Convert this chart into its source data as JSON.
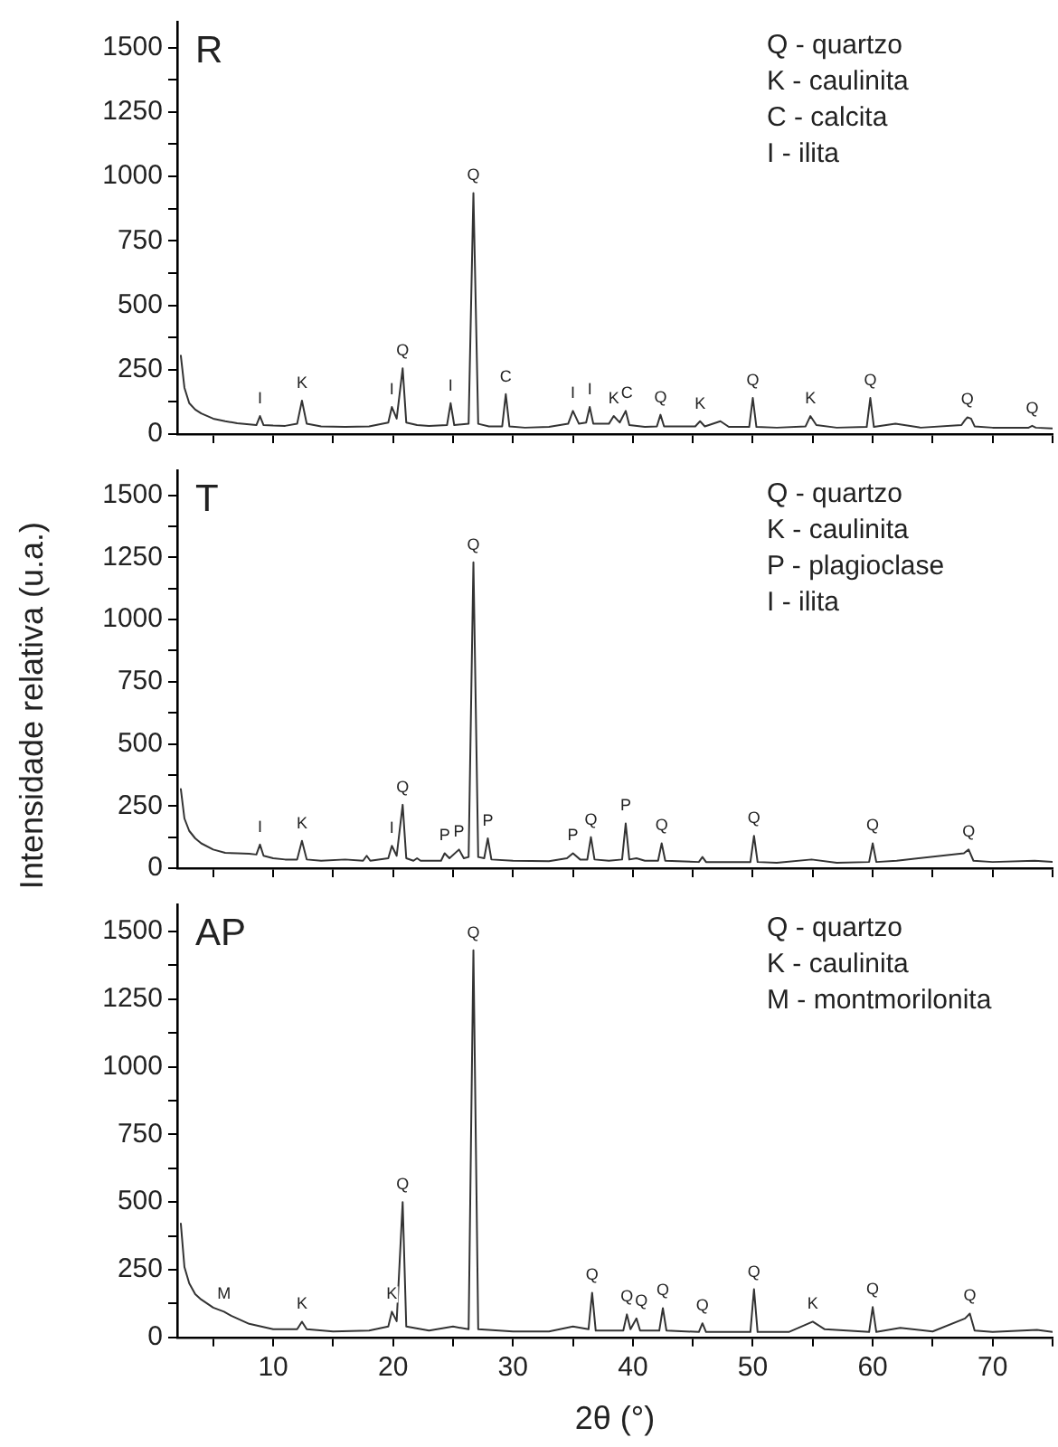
{
  "chart_data": [
    {
      "type": "line",
      "title": "R",
      "xlim": [
        2,
        75
      ],
      "ylim": [
        0,
        1600
      ],
      "tick_labels": "y",
      "marker": "none",
      "line_style": "solid",
      "xticks": [
        {
          "value": 5,
          "label": null
        },
        10,
        {
          "value": 15,
          "label": null
        },
        20,
        {
          "value": 25,
          "label": null
        },
        30,
        {
          "value": 35,
          "label": null
        },
        40,
        {
          "value": 45,
          "label": null
        },
        50,
        {
          "value": 55,
          "label": null
        },
        60,
        {
          "value": 65,
          "label": null
        },
        70,
        {
          "value": 75,
          "label": null
        }
      ],
      "yticks": [
        0,
        {
          "value": 125,
          "label": null
        },
        250,
        {
          "value": 375,
          "label": null
        },
        500,
        {
          "value": 625,
          "label": null
        },
        750,
        {
          "value": 875,
          "label": null
        },
        1000,
        {
          "value": 1125,
          "label": null
        },
        1250,
        {
          "value": 1375,
          "label": null
        },
        1500
      ],
      "series": [
        {
          "color": "#333333",
          "x": [
            2.3,
            2.6,
            3,
            3.5,
            4,
            5,
            6,
            7,
            8,
            8.6,
            8.9,
            9.2,
            10,
            11,
            12.0,
            12.4,
            12.8,
            14,
            16,
            18,
            19.6,
            19.9,
            20.3,
            20.8,
            21.1,
            22,
            23,
            24.5,
            24.8,
            25.1,
            26.3,
            26.7,
            27.1,
            28,
            29.1,
            29.4,
            29.7,
            31,
            33,
            34.6,
            35.0,
            35.5,
            36.1,
            36.4,
            36.7,
            38.0,
            38.4,
            38.9,
            39.4,
            39.7,
            41,
            42.0,
            42.3,
            42.6,
            45.2,
            45.6,
            46,
            47.3,
            48,
            49.7,
            50.0,
            50.3,
            52,
            54.4,
            54.8,
            55.3,
            57,
            59.5,
            59.8,
            60.1,
            61.9,
            64,
            67.4,
            67.7,
            67.9,
            68.2,
            68.5,
            70,
            73.0,
            73.3,
            73.6,
            75
          ],
          "values": [
            304,
            180,
            120,
            95,
            80,
            60,
            50,
            42,
            38,
            35,
            70,
            35,
            33,
            32,
            40,
            130,
            40,
            30,
            28,
            30,
            45,
            105,
            60,
            255,
            45,
            35,
            32,
            35,
            120,
            35,
            40,
            935,
            40,
            30,
            30,
            155,
            30,
            25,
            28,
            40,
            90,
            40,
            45,
            105,
            40,
            40,
            70,
            45,
            90,
            35,
            28,
            30,
            75,
            30,
            30,
            50,
            30,
            50,
            28,
            28,
            140,
            28,
            25,
            30,
            70,
            35,
            25,
            28,
            140,
            28,
            40,
            25,
            35,
            55,
            65,
            60,
            30,
            25,
            25,
            32,
            25,
            22
          ]
        }
      ],
      "annotations": [
        "Q - quartzo",
        "K - caulinita",
        "C - calcita",
        "I - ilita",
        {
          "text": "I",
          "x": 8.9,
          "y": 70
        },
        {
          "text": "K",
          "x": 12.4,
          "y": 130
        },
        {
          "text": "I",
          "x": 19.9,
          "y": 105
        },
        {
          "text": "Q",
          "x": 20.8,
          "y": 255
        },
        {
          "text": "I",
          "x": 24.8,
          "y": 120
        },
        {
          "text": "Q",
          "x": 26.7,
          "y": 935
        },
        {
          "text": "C",
          "x": 29.4,
          "y": 155
        },
        {
          "text": "I",
          "x": 35.0,
          "y": 90
        },
        {
          "text": "I",
          "x": 36.4,
          "y": 105
        },
        {
          "text": "K",
          "x": 38.4,
          "y": 70
        },
        {
          "text": "C",
          "x": 39.4,
          "y": 90
        },
        {
          "text": "Q",
          "x": 42.3,
          "y": 75
        },
        {
          "text": "K",
          "x": 45.6,
          "y": 50
        },
        {
          "text": "Q",
          "x": 50.0,
          "y": 140
        },
        {
          "text": "K",
          "x": 54.8,
          "y": 70
        },
        {
          "text": "Q",
          "x": 59.8,
          "y": 140
        },
        {
          "text": "Q",
          "x": 67.9,
          "y": 65
        },
        {
          "text": "Q",
          "x": 73.3,
          "y": 32
        }
      ]
    },
    {
      "type": "line",
      "title": "T",
      "ylabel": "Intensidade relativa (u.a.)",
      "xlim": [
        2,
        75
      ],
      "ylim": [
        0,
        1600
      ],
      "tick_labels": "y",
      "marker": "none",
      "line_style": "solid",
      "xticks": [
        {
          "value": 5,
          "label": null
        },
        10,
        {
          "value": 15,
          "label": null
        },
        20,
        {
          "value": 25,
          "label": null
        },
        30,
        {
          "value": 35,
          "label": null
        },
        40,
        {
          "value": 45,
          "label": null
        },
        50,
        {
          "value": 55,
          "label": null
        },
        60,
        {
          "value": 65,
          "label": null
        },
        70,
        {
          "value": 75,
          "label": null
        }
      ],
      "yticks": [
        0,
        {
          "value": 125,
          "label": null
        },
        250,
        {
          "value": 375,
          "label": null
        },
        500,
        {
          "value": 625,
          "label": null
        },
        750,
        {
          "value": 875,
          "label": null
        },
        1000,
        {
          "value": 1125,
          "label": null
        },
        1250,
        {
          "value": 1375,
          "label": null
        },
        1500
      ],
      "series": [
        {
          "color": "#333333",
          "x": [
            2.3,
            2.6,
            3,
            3.5,
            4,
            5,
            6,
            7,
            8,
            8.6,
            8.9,
            9.2,
            10,
            11,
            12.0,
            12.4,
            12.8,
            14,
            16,
            17.5,
            17.8,
            18.1,
            19.6,
            19.9,
            20.3,
            20.8,
            21.1,
            21.7,
            22.0,
            22.3,
            24.0,
            24.3,
            24.7,
            25.5,
            25.9,
            26.3,
            26.7,
            27.1,
            27.6,
            27.9,
            28.2,
            30,
            33,
            34.5,
            35.0,
            35.6,
            36.2,
            36.5,
            36.8,
            38,
            39.1,
            39.4,
            39.7,
            40.3,
            41,
            42.1,
            42.4,
            42.7,
            45.5,
            45.8,
            46.1,
            48,
            49.8,
            50.1,
            50.4,
            52,
            54.9,
            57,
            59.7,
            60.0,
            60.3,
            62,
            67.6,
            68.0,
            68.4,
            70,
            73.5,
            75
          ],
          "values": [
            318,
            200,
            150,
            120,
            100,
            75,
            62,
            60,
            58,
            55,
            95,
            50,
            40,
            35,
            35,
            110,
            35,
            30,
            35,
            30,
            50,
            30,
            40,
            90,
            50,
            255,
            40,
            30,
            40,
            30,
            30,
            60,
            40,
            75,
            40,
            45,
            1230,
            45,
            40,
            120,
            35,
            30,
            28,
            40,
            60,
            35,
            35,
            125,
            35,
            30,
            35,
            180,
            35,
            40,
            30,
            30,
            100,
            30,
            25,
            45,
            25,
            25,
            25,
            130,
            25,
            22,
            35,
            22,
            25,
            100,
            25,
            30,
            60,
            75,
            30,
            25,
            30,
            25
          ]
        }
      ],
      "annotations": [
        "Q - quartzo",
        "K - caulinita",
        "P - plagioclase",
        "I - ilita",
        {
          "text": "I",
          "x": 8.9,
          "y": 95
        },
        {
          "text": "K",
          "x": 12.4,
          "y": 110
        },
        {
          "text": "I",
          "x": 19.9,
          "y": 90
        },
        {
          "text": "Q",
          "x": 20.8,
          "y": 255
        },
        {
          "text": "P",
          "x": 24.3,
          "y": 60
        },
        {
          "text": "P",
          "x": 25.5,
          "y": 75
        },
        {
          "text": "Q",
          "x": 26.7,
          "y": 1230
        },
        {
          "text": "P",
          "x": 27.9,
          "y": 120
        },
        {
          "text": "P",
          "x": 35.0,
          "y": 60
        },
        {
          "text": "Q",
          "x": 36.5,
          "y": 125
        },
        {
          "text": "P",
          "x": 39.4,
          "y": 180
        },
        {
          "text": "Q",
          "x": 42.4,
          "y": 100
        },
        {
          "text": "Q",
          "x": 50.1,
          "y": 130
        },
        {
          "text": "Q",
          "x": 60.0,
          "y": 100
        },
        {
          "text": "Q",
          "x": 68.0,
          "y": 75
        }
      ]
    },
    {
      "type": "line",
      "title": "AP",
      "xlabel": "2θ (°)",
      "xlim": [
        2,
        75
      ],
      "ylim": [
        0,
        1600
      ],
      "marker": "none",
      "line_style": "solid",
      "xticks": [
        {
          "value": 5,
          "label": null
        },
        10,
        {
          "value": 15,
          "label": null
        },
        20,
        {
          "value": 25,
          "label": null
        },
        30,
        {
          "value": 35,
          "label": null
        },
        40,
        {
          "value": 45,
          "label": null
        },
        50,
        {
          "value": 55,
          "label": null
        },
        60,
        {
          "value": 65,
          "label": null
        },
        70,
        {
          "value": 75,
          "label": null
        }
      ],
      "yticks": [
        0,
        {
          "value": 125,
          "label": null
        },
        250,
        {
          "value": 375,
          "label": null
        },
        500,
        {
          "value": 625,
          "label": null
        },
        750,
        {
          "value": 875,
          "label": null
        },
        1000,
        {
          "value": 1125,
          "label": null
        },
        1250,
        {
          "value": 1375,
          "label": null
        },
        1500
      ],
      "series": [
        {
          "color": "#333333",
          "x": [
            2.3,
            2.6,
            3,
            3.5,
            4,
            5,
            5.9,
            6.5,
            8,
            10,
            12.0,
            12.4,
            12.8,
            15,
            18,
            19.6,
            19.9,
            20.3,
            20.8,
            21.1,
            23,
            25.0,
            26.3,
            26.7,
            27.1,
            30,
            33,
            35.0,
            36.3,
            36.6,
            36.9,
            39.2,
            39.5,
            39.8,
            40.3,
            40.6,
            42.2,
            42.5,
            42.8,
            45.5,
            45.8,
            46.1,
            48,
            49.8,
            50.1,
            50.4,
            53,
            55.0,
            56,
            59.7,
            60.0,
            60.3,
            62.3,
            65,
            67.7,
            68.1,
            68.5,
            70,
            73.7,
            75
          ],
          "values": [
            420,
            260,
            200,
            160,
            140,
            110,
            95,
            80,
            50,
            30,
            30,
            58,
            30,
            22,
            25,
            40,
            95,
            60,
            500,
            40,
            25,
            40,
            30,
            1430,
            30,
            22,
            22,
            40,
            30,
            165,
            25,
            25,
            85,
            30,
            70,
            25,
            25,
            108,
            25,
            20,
            52,
            20,
            20,
            20,
            178,
            20,
            20,
            58,
            30,
            20,
            112,
            20,
            35,
            22,
            70,
            88,
            25,
            20,
            28,
            20
          ]
        }
      ],
      "annotations": [
        "Q - quartzo",
        "K - caulinita",
        "M - montmorilonita",
        {
          "text": "M",
          "x": 5.9,
          "y": 95
        },
        {
          "text": "K",
          "x": 12.4,
          "y": 58
        },
        {
          "text": "K",
          "x": 19.9,
          "y": 95
        },
        {
          "text": "Q",
          "x": 20.8,
          "y": 500
        },
        {
          "text": "Q",
          "x": 26.7,
          "y": 1430
        },
        {
          "text": "Q",
          "x": 36.6,
          "y": 165
        },
        {
          "text": "Q",
          "x": 39.5,
          "y": 85
        },
        {
          "text": "Q",
          "x": 40.3,
          "y": 70
        },
        {
          "text": "Q",
          "x": 42.5,
          "y": 108
        },
        {
          "text": "Q",
          "x": 45.8,
          "y": 52
        },
        {
          "text": "Q",
          "x": 50.1,
          "y": 178
        },
        {
          "text": "K",
          "x": 55.0,
          "y": 58
        },
        {
          "text": "Q",
          "x": 60.0,
          "y": 112
        },
        {
          "text": "Q",
          "x": 68.1,
          "y": 88
        }
      ]
    }
  ]
}
